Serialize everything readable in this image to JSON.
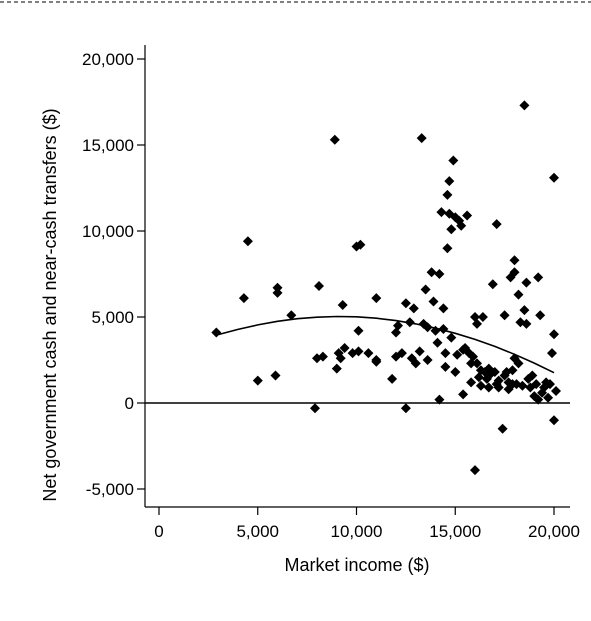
{
  "chart_data": {
    "type": "scatter",
    "title": "",
    "xlabel": "Market income ($)",
    "ylabel": "Net government cash and near-cash transfers ($)",
    "xlim": [
      -1000,
      20800
    ],
    "ylim": [
      -5900,
      21000
    ],
    "xticks": [
      0,
      5000,
      10000,
      15000,
      20000
    ],
    "xtick_labels": [
      "0",
      "5,000",
      "10,000",
      "15,000",
      "20,000"
    ],
    "yticks": [
      -5000,
      0,
      5000,
      10000,
      15000,
      20000
    ],
    "ytick_labels": [
      "-5,000",
      "0",
      "5,000",
      "10,000",
      "15,000",
      "20,000"
    ],
    "grid": false,
    "legend": "none",
    "reference_line_y": 0,
    "marker": "diamond",
    "marker_color": "#000000",
    "points": [
      [
        4300,
        6100
      ],
      [
        4500,
        9400
      ],
      [
        5000,
        1300
      ],
      [
        5900,
        1600
      ],
      [
        6000,
        6700
      ],
      [
        6000,
        6400
      ],
      [
        6700,
        5100
      ],
      [
        7900,
        -300
      ],
      [
        8100,
        6800
      ],
      [
        8000,
        2600
      ],
      [
        8300,
        2700
      ],
      [
        8900,
        15300
      ],
      [
        9000,
        2000
      ],
      [
        9100,
        2900
      ],
      [
        9200,
        2600
      ],
      [
        9300,
        5700
      ],
      [
        9400,
        3200
      ],
      [
        9800,
        2900
      ],
      [
        10000,
        9100
      ],
      [
        10200,
        9200
      ],
      [
        10100,
        4200
      ],
      [
        10100,
        3000
      ],
      [
        10600,
        2900
      ],
      [
        11000,
        2500
      ],
      [
        11000,
        2400
      ],
      [
        11000,
        6100
      ],
      [
        11800,
        1400
      ],
      [
        12000,
        4100
      ],
      [
        12000,
        2700
      ],
      [
        12100,
        4500
      ],
      [
        12300,
        2900
      ],
      [
        12500,
        -300
      ],
      [
        12500,
        5800
      ],
      [
        12700,
        4700
      ],
      [
        12800,
        2600
      ],
      [
        12900,
        5500
      ],
      [
        13000,
        2300
      ],
      [
        13200,
        3000
      ],
      [
        13300,
        15400
      ],
      [
        13400,
        4600
      ],
      [
        13500,
        6600
      ],
      [
        13600,
        4400
      ],
      [
        13600,
        2500
      ],
      [
        13800,
        7600
      ],
      [
        13900,
        5900
      ],
      [
        14000,
        4200
      ],
      [
        14100,
        3500
      ],
      [
        14200,
        200
      ],
      [
        14200,
        7500
      ],
      [
        14300,
        11100
      ],
      [
        14400,
        5500
      ],
      [
        14400,
        4300
      ],
      [
        14500,
        2900
      ],
      [
        14500,
        2100
      ],
      [
        14600,
        12100
      ],
      [
        14600,
        9000
      ],
      [
        14700,
        12900
      ],
      [
        14700,
        11000
      ],
      [
        14800,
        10100
      ],
      [
        14800,
        3800
      ],
      [
        14900,
        14100
      ],
      [
        15000,
        10800
      ],
      [
        15000,
        1800
      ],
      [
        15100,
        2800
      ],
      [
        15200,
        10600
      ],
      [
        15300,
        10300
      ],
      [
        15400,
        3100
      ],
      [
        15400,
        500
      ],
      [
        15500,
        3200
      ],
      [
        15600,
        10900
      ],
      [
        15700,
        2900
      ],
      [
        15800,
        2300
      ],
      [
        15800,
        1200
      ],
      [
        15900,
        2700
      ],
      [
        16000,
        -3900
      ],
      [
        16000,
        5000
      ],
      [
        16100,
        4600
      ],
      [
        16100,
        2300
      ],
      [
        16200,
        1500
      ],
      [
        16300,
        1900
      ],
      [
        16300,
        1000
      ],
      [
        16400,
        5000
      ],
      [
        16500,
        1800
      ],
      [
        16600,
        1400
      ],
      [
        16700,
        900
      ],
      [
        16700,
        2000
      ],
      [
        16800,
        1700
      ],
      [
        16900,
        6900
      ],
      [
        17000,
        1800
      ],
      [
        17100,
        1100
      ],
      [
        17100,
        10400
      ],
      [
        17200,
        1300
      ],
      [
        17200,
        900
      ],
      [
        17400,
        -1500
      ],
      [
        17500,
        1600
      ],
      [
        17500,
        5100
      ],
      [
        17600,
        1800
      ],
      [
        17700,
        800
      ],
      [
        17700,
        1200
      ],
      [
        17800,
        7300
      ],
      [
        17900,
        1900
      ],
      [
        17900,
        1100
      ],
      [
        18000,
        8300
      ],
      [
        18000,
        2600
      ],
      [
        18000,
        7600
      ],
      [
        18100,
        1100
      ],
      [
        18200,
        2300
      ],
      [
        18200,
        6300
      ],
      [
        18300,
        4700
      ],
      [
        18400,
        1000
      ],
      [
        18500,
        5400
      ],
      [
        18500,
        17300
      ],
      [
        18600,
        7000
      ],
      [
        18600,
        4600
      ],
      [
        18700,
        1400
      ],
      [
        18800,
        900
      ],
      [
        18900,
        1600
      ],
      [
        19000,
        400
      ],
      [
        19100,
        1100
      ],
      [
        19200,
        7300
      ],
      [
        19200,
        200
      ],
      [
        19300,
        5100
      ],
      [
        19400,
        600
      ],
      [
        19500,
        900
      ],
      [
        19600,
        1200
      ],
      [
        19700,
        300
      ],
      [
        19800,
        1100
      ],
      [
        19900,
        2900
      ],
      [
        20000,
        13100
      ],
      [
        20000,
        4000
      ],
      [
        20000,
        -1000
      ],
      [
        20100,
        700
      ],
      [
        2900,
        4100
      ]
    ],
    "fit_curve": {
      "type": "quadratic",
      "x": [
        2900,
        4000,
        5000,
        6000,
        7000,
        8000,
        9000,
        10000,
        11000,
        12000,
        13000,
        14000,
        15000,
        16000,
        17000,
        18000,
        19000,
        20000
      ],
      "y": [
        3950,
        4280,
        4540,
        4750,
        4900,
        4990,
        5030,
        5010,
        4930,
        4790,
        4600,
        4350,
        4050,
        3700,
        3290,
        2830,
        2320,
        1760
      ]
    }
  }
}
